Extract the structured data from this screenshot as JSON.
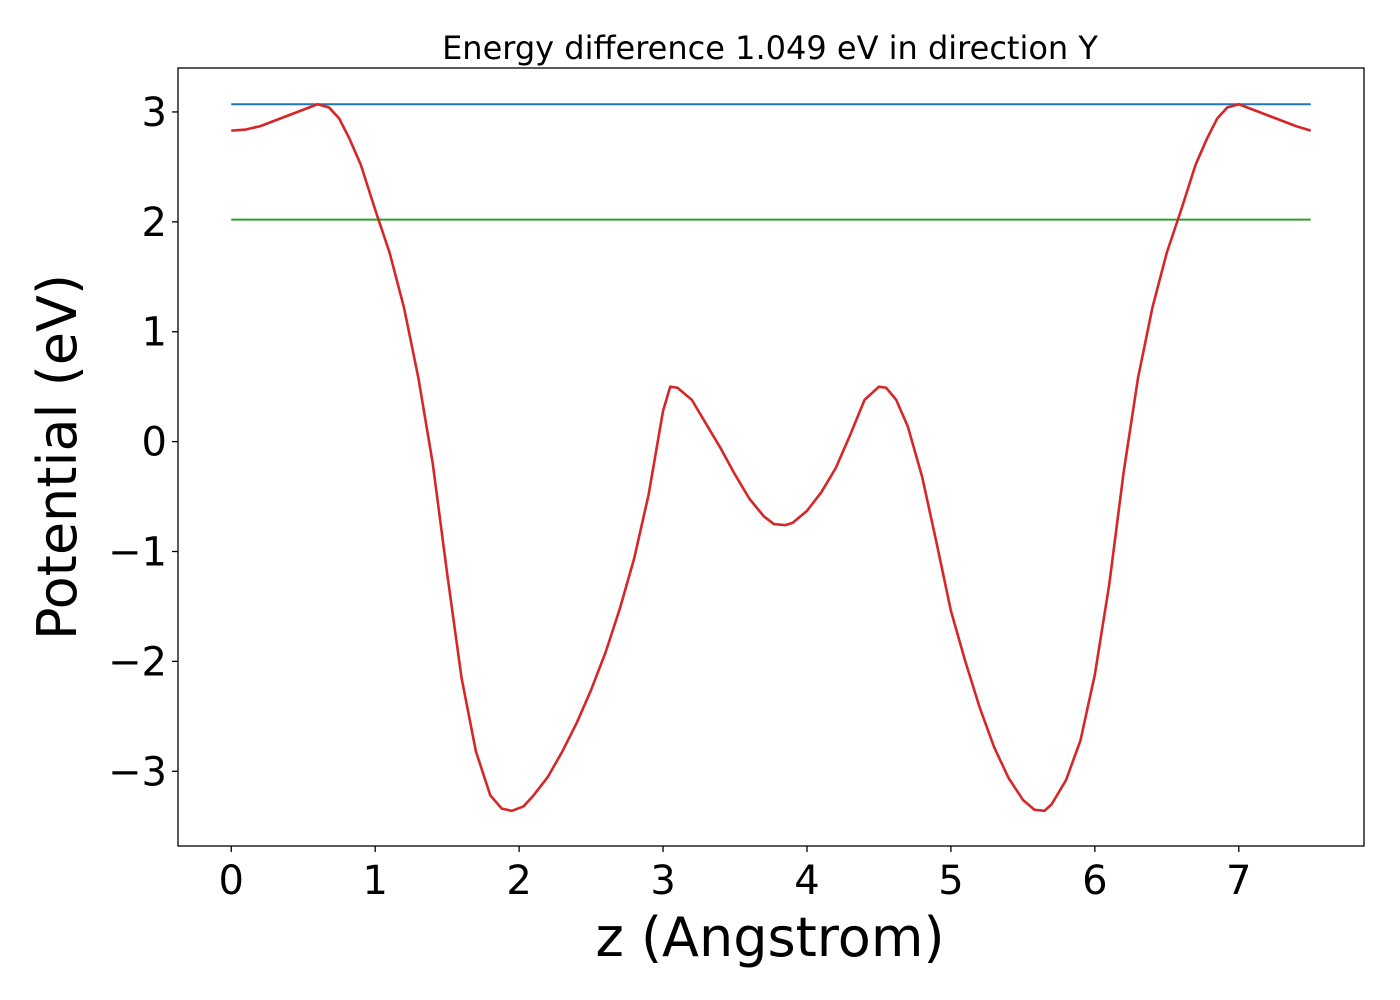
{
  "chart_data": {
    "type": "line",
    "title": "Energy difference 1.049 eV in direction Y",
    "xlabel": "z (Angstrom)",
    "ylabel": "Potential (eV)",
    "xlim": [
      -0.37,
      7.87
    ],
    "ylim": [
      -3.68,
      3.4
    ],
    "xticks": [
      0,
      1,
      2,
      3,
      4,
      5,
      6,
      7
    ],
    "yticks": [
      -3,
      -2,
      -1,
      0,
      1,
      2,
      3
    ],
    "ytick_labels": [
      "−3",
      "−2",
      "−1",
      "0",
      "1",
      "2",
      "3"
    ],
    "grid": false,
    "legend": "none",
    "series": [
      {
        "color": "#d62728",
        "points": [
          [
            0.0,
            2.83
          ],
          [
            0.1,
            2.84
          ],
          [
            0.2,
            2.87
          ],
          [
            0.3,
            2.92
          ],
          [
            0.4,
            2.97
          ],
          [
            0.5,
            3.02
          ],
          [
            0.6,
            3.07
          ],
          [
            0.68,
            3.04
          ],
          [
            0.75,
            2.94
          ],
          [
            0.82,
            2.76
          ],
          [
            0.9,
            2.52
          ],
          [
            1.0,
            2.11
          ],
          [
            1.1,
            1.72
          ],
          [
            1.2,
            1.22
          ],
          [
            1.3,
            0.58
          ],
          [
            1.4,
            -0.2
          ],
          [
            1.5,
            -1.2
          ],
          [
            1.6,
            -2.15
          ],
          [
            1.7,
            -2.82
          ],
          [
            1.8,
            -3.22
          ],
          [
            1.88,
            -3.34
          ],
          [
            1.95,
            -3.36
          ],
          [
            2.03,
            -3.32
          ],
          [
            2.1,
            -3.22
          ],
          [
            2.2,
            -3.05
          ],
          [
            2.3,
            -2.82
          ],
          [
            2.4,
            -2.56
          ],
          [
            2.5,
            -2.26
          ],
          [
            2.6,
            -1.92
          ],
          [
            2.7,
            -1.52
          ],
          [
            2.8,
            -1.06
          ],
          [
            2.9,
            -0.48
          ],
          [
            3.0,
            0.28
          ],
          [
            3.05,
            0.5
          ],
          [
            3.1,
            0.49
          ],
          [
            3.2,
            0.38
          ],
          [
            3.3,
            0.16
          ],
          [
            3.4,
            -0.06
          ],
          [
            3.5,
            -0.3
          ],
          [
            3.6,
            -0.52
          ],
          [
            3.7,
            -0.68
          ],
          [
            3.77,
            -0.75
          ],
          [
            3.85,
            -0.76
          ],
          [
            3.9,
            -0.74
          ],
          [
            4.0,
            -0.63
          ],
          [
            4.1,
            -0.46
          ],
          [
            4.2,
            -0.24
          ],
          [
            4.3,
            0.06
          ],
          [
            4.4,
            0.38
          ],
          [
            4.5,
            0.5
          ],
          [
            4.55,
            0.49
          ],
          [
            4.62,
            0.38
          ],
          [
            4.7,
            0.14
          ],
          [
            4.8,
            -0.32
          ],
          [
            4.9,
            -0.92
          ],
          [
            5.0,
            -1.54
          ],
          [
            5.1,
            -2.0
          ],
          [
            5.2,
            -2.42
          ],
          [
            5.3,
            -2.78
          ],
          [
            5.4,
            -3.06
          ],
          [
            5.5,
            -3.26
          ],
          [
            5.58,
            -3.35
          ],
          [
            5.65,
            -3.36
          ],
          [
            5.7,
            -3.3
          ],
          [
            5.8,
            -3.08
          ],
          [
            5.9,
            -2.72
          ],
          [
            6.0,
            -2.12
          ],
          [
            6.1,
            -1.3
          ],
          [
            6.2,
            -0.28
          ],
          [
            6.3,
            0.58
          ],
          [
            6.4,
            1.22
          ],
          [
            6.5,
            1.72
          ],
          [
            6.6,
            2.11
          ],
          [
            6.7,
            2.52
          ],
          [
            6.78,
            2.76
          ],
          [
            6.85,
            2.94
          ],
          [
            6.92,
            3.04
          ],
          [
            7.0,
            3.07
          ],
          [
            7.1,
            3.02
          ],
          [
            7.2,
            2.97
          ],
          [
            7.3,
            2.92
          ],
          [
            7.4,
            2.87
          ],
          [
            7.5,
            2.83
          ]
        ]
      },
      {
        "color": "#1f77b4",
        "points": [
          [
            0.0,
            3.07
          ],
          [
            7.5,
            3.07
          ]
        ]
      },
      {
        "color": "#2ca02c",
        "points": [
          [
            0.0,
            2.02
          ],
          [
            7.5,
            2.02
          ]
        ]
      }
    ]
  }
}
